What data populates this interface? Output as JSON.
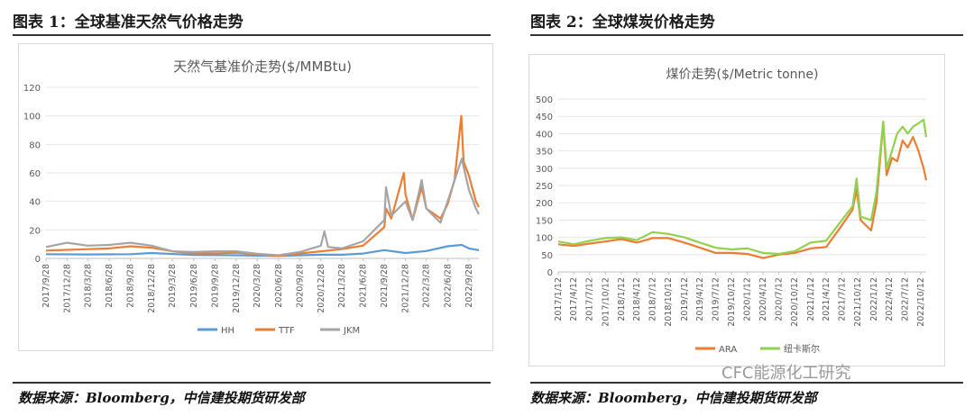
{
  "fig1": {
    "caption": "图表 1：全球基准天然气价格走势",
    "source": "数据来源：Bloomberg，中信建投期货研发部"
  },
  "fig2": {
    "caption": "图表 2：全球煤炭价格走势",
    "source": "数据来源：Bloomberg，中信建投期货研发部"
  },
  "watermark": "CFC能源化工研究",
  "chart_data": [
    {
      "type": "line",
      "title": "天然气基准价走势($/MMBtu)",
      "xlabel": "",
      "ylabel": "",
      "ylim": [
        0,
        120
      ],
      "yticks": [
        0,
        20,
        40,
        60,
        80,
        100,
        120
      ],
      "xlim": [
        "2017/9/28",
        "2022/11/10"
      ],
      "xticks": [
        "2017/9/28",
        "2017/12/28",
        "2018/3/28",
        "2018/6/28",
        "2018/9/28",
        "2018/12/28",
        "2019/3/28",
        "2019/6/28",
        "2019/9/28",
        "2019/12/28",
        "2020/3/28",
        "2020/6/28",
        "2020/9/28",
        "2020/12/28",
        "2021/3/28",
        "2021/6/28",
        "2021/9/28",
        "2021/12/28",
        "2022/3/28",
        "2022/6/28",
        "2022/9/28"
      ],
      "grid": true,
      "legend": "bottom",
      "series": [
        {
          "name": "HH",
          "color": "#5b9bd5",
          "points": [
            [
              "2017/9/28",
              3
            ],
            [
              "2018/3/28",
              2.8
            ],
            [
              "2018/9/28",
              3
            ],
            [
              "2018/12/28",
              3.8
            ],
            [
              "2019/6/28",
              2.4
            ],
            [
              "2019/12/28",
              2.2
            ],
            [
              "2020/6/28",
              1.7
            ],
            [
              "2020/9/28",
              2.2
            ],
            [
              "2020/12/28",
              2.6
            ],
            [
              "2021/3/28",
              2.6
            ],
            [
              "2021/6/28",
              3.4
            ],
            [
              "2021/9/28",
              5.8
            ],
            [
              "2021/12/28",
              3.8
            ],
            [
              "2022/3/28",
              5.2
            ],
            [
              "2022/6/28",
              8.5
            ],
            [
              "2022/8/28",
              9.5
            ],
            [
              "2022/9/28",
              7
            ],
            [
              "2022/11/10",
              5.8
            ]
          ]
        },
        {
          "name": "TTF",
          "color": "#ed7d31",
          "points": [
            [
              "2017/9/28",
              5.5
            ],
            [
              "2017/12/28",
              6
            ],
            [
              "2018/3/28",
              6.5
            ],
            [
              "2018/6/28",
              7
            ],
            [
              "2018/9/28",
              8.5
            ],
            [
              "2018/12/28",
              7.5
            ],
            [
              "2019/3/28",
              5
            ],
            [
              "2019/6/28",
              3.5
            ],
            [
              "2019/9/28",
              3.5
            ],
            [
              "2019/12/28",
              4
            ],
            [
              "2020/3/28",
              3
            ],
            [
              "2020/6/28",
              1.7
            ],
            [
              "2020/9/28",
              3.5
            ],
            [
              "2020/12/28",
              5
            ],
            [
              "2021/3/28",
              6.5
            ],
            [
              "2021/6/28",
              9
            ],
            [
              "2021/9/28",
              22
            ],
            [
              "2021/10/5",
              35
            ],
            [
              "2021/10/28",
              28
            ],
            [
              "2021/12/21",
              60
            ],
            [
              "2021/12/28",
              45
            ],
            [
              "2022/1/28",
              27
            ],
            [
              "2022/3/8",
              50
            ],
            [
              "2022/3/28",
              35
            ],
            [
              "2022/5/28",
              28
            ],
            [
              "2022/6/28",
              38
            ],
            [
              "2022/7/28",
              55
            ],
            [
              "2022/8/26",
              100
            ],
            [
              "2022/9/5",
              68
            ],
            [
              "2022/9/28",
              58
            ],
            [
              "2022/10/28",
              40
            ],
            [
              "2022/11/10",
              36
            ]
          ]
        },
        {
          "name": "JKM",
          "color": "#a5a5a5",
          "points": [
            [
              "2017/9/28",
              8
            ],
            [
              "2017/12/28",
              11
            ],
            [
              "2018/3/28",
              9
            ],
            [
              "2018/6/28",
              9.5
            ],
            [
              "2018/9/28",
              11
            ],
            [
              "2018/12/28",
              9
            ],
            [
              "2019/3/28",
              5
            ],
            [
              "2019/6/28",
              4.5
            ],
            [
              "2019/9/28",
              5
            ],
            [
              "2019/12/28",
              5
            ],
            [
              "2020/3/28",
              3.2
            ],
            [
              "2020/6/28",
              2.2
            ],
            [
              "2020/9/28",
              4.5
            ],
            [
              "2020/12/28",
              9
            ],
            [
              "2021/1/12",
              19
            ],
            [
              "2021/1/28",
              8
            ],
            [
              "2021/3/28",
              7
            ],
            [
              "2021/6/28",
              12
            ],
            [
              "2021/9/28",
              27
            ],
            [
              "2021/10/5",
              50
            ],
            [
              "2021/10/28",
              30
            ],
            [
              "2021/12/28",
              40
            ],
            [
              "2022/1/28",
              27
            ],
            [
              "2022/3/8",
              55
            ],
            [
              "2022/3/28",
              35
            ],
            [
              "2022/5/28",
              25
            ],
            [
              "2022/6/28",
              40
            ],
            [
              "2022/8/28",
              70
            ],
            [
              "2022/9/28",
              48
            ],
            [
              "2022/10/28",
              35
            ],
            [
              "2022/11/10",
              31
            ]
          ]
        }
      ]
    },
    {
      "type": "line",
      "title": "煤价走势($/Metric tonne)",
      "xlabel": "",
      "ylabel": "",
      "ylim": [
        0,
        500
      ],
      "yticks": [
        0,
        50,
        100,
        150,
        200,
        250,
        300,
        350,
        400,
        450,
        500
      ],
      "xlim": [
        "2017/1/12",
        "2022/11/12"
      ],
      "xticks": [
        "2017/1/12",
        "2017/4/12",
        "2017/7/12",
        "2017/10/12",
        "2018/1/12",
        "2018/4/12",
        "2018/7/12",
        "2018/10/12",
        "2019/1/12",
        "2019/4/12",
        "2019/7/12",
        "2019/10/12",
        "2020/1/12",
        "2020/4/12",
        "2020/7/12",
        "2020/10/12",
        "2021/1/12",
        "2021/4/12",
        "2021/7/12",
        "2021/10/12",
        "2022/1/12",
        "2022/4/12",
        "2022/7/12",
        "2022/10/12"
      ],
      "grid": true,
      "legend": "bottom",
      "series": [
        {
          "name": "ARA",
          "color": "#ed7d31",
          "points": [
            [
              "2017/1/12",
              80
            ],
            [
              "2017/4/12",
              75
            ],
            [
              "2017/7/12",
              82
            ],
            [
              "2017/10/12",
              88
            ],
            [
              "2018/1/12",
              95
            ],
            [
              "2018/4/12",
              85
            ],
            [
              "2018/7/12",
              98
            ],
            [
              "2018/10/12",
              98
            ],
            [
              "2019/1/12",
              85
            ],
            [
              "2019/4/12",
              70
            ],
            [
              "2019/7/12",
              55
            ],
            [
              "2019/10/12",
              55
            ],
            [
              "2020/1/12",
              52
            ],
            [
              "2020/4/12",
              40
            ],
            [
              "2020/7/12",
              50
            ],
            [
              "2020/10/12",
              55
            ],
            [
              "2021/1/12",
              68
            ],
            [
              "2021/4/12",
              72
            ],
            [
              "2021/7/12",
              135
            ],
            [
              "2021/9/12",
              180
            ],
            [
              "2021/10/5",
              240
            ],
            [
              "2021/10/28",
              150
            ],
            [
              "2021/12/28",
              120
            ],
            [
              "2022/1/28",
              200
            ],
            [
              "2022/3/8",
              430
            ],
            [
              "2022/3/28",
              280
            ],
            [
              "2022/4/28",
              330
            ],
            [
              "2022/5/28",
              320
            ],
            [
              "2022/6/28",
              380
            ],
            [
              "2022/7/28",
              360
            ],
            [
              "2022/8/28",
              390
            ],
            [
              "2022/9/28",
              350
            ],
            [
              "2022/10/28",
              300
            ],
            [
              "2022/11/12",
              265
            ]
          ]
        },
        {
          "name": "纽卡斯尔",
          "color": "#92d050",
          "points": [
            [
              "2017/1/12",
              88
            ],
            [
              "2017/4/12",
              80
            ],
            [
              "2017/7/12",
              90
            ],
            [
              "2017/10/12",
              98
            ],
            [
              "2018/1/12",
              100
            ],
            [
              "2018/4/12",
              92
            ],
            [
              "2018/7/12",
              115
            ],
            [
              "2018/10/12",
              110
            ],
            [
              "2019/1/12",
              100
            ],
            [
              "2019/4/12",
              85
            ],
            [
              "2019/7/12",
              70
            ],
            [
              "2019/10/12",
              65
            ],
            [
              "2020/1/12",
              68
            ],
            [
              "2020/4/12",
              55
            ],
            [
              "2020/7/12",
              52
            ],
            [
              "2020/10/12",
              60
            ],
            [
              "2021/1/12",
              85
            ],
            [
              "2021/4/12",
              90
            ],
            [
              "2021/7/12",
              150
            ],
            [
              "2021/9/12",
              190
            ],
            [
              "2021/10/5",
              270
            ],
            [
              "2021/10/28",
              160
            ],
            [
              "2021/12/28",
              150
            ],
            [
              "2022/1/28",
              230
            ],
            [
              "2022/3/8",
              435
            ],
            [
              "2022/3/28",
              300
            ],
            [
              "2022/4/28",
              350
            ],
            [
              "2022/5/28",
              400
            ],
            [
              "2022/6/28",
              420
            ],
            [
              "2022/7/28",
              400
            ],
            [
              "2022/8/28",
              420
            ],
            [
              "2022/9/28",
              430
            ],
            [
              "2022/10/28",
              440
            ],
            [
              "2022/11/12",
              390
            ]
          ]
        }
      ]
    }
  ]
}
